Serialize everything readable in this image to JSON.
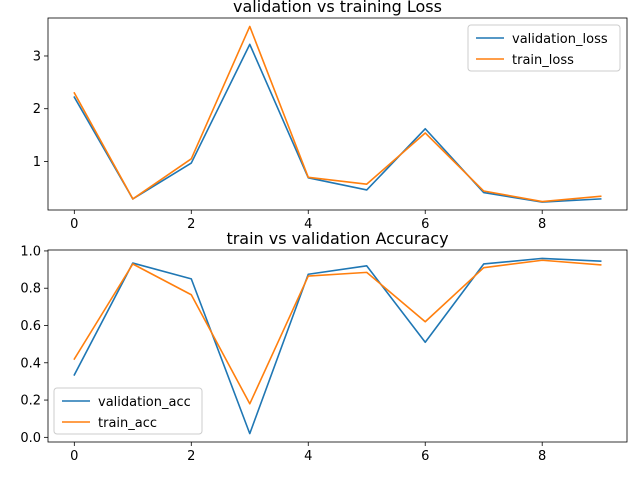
{
  "chart_data": [
    {
      "type": "line",
      "title": "validation vs training Loss",
      "xlabel": "",
      "ylabel": "",
      "x": [
        0,
        1,
        2,
        3,
        4,
        5,
        6,
        7,
        8,
        9
      ],
      "xlim": [
        -0.45,
        9.45
      ],
      "ylim": [
        0.08,
        3.72
      ],
      "xticks": [
        0,
        2,
        4,
        6,
        8
      ],
      "yticks": [
        1,
        2,
        3
      ],
      "grid": false,
      "legend_position": "upper right",
      "series": [
        {
          "name": "validation_loss",
          "color": "#1f77b4",
          "values": [
            2.22,
            0.29,
            0.97,
            3.22,
            0.69,
            0.46,
            1.62,
            0.41,
            0.23,
            0.29
          ]
        },
        {
          "name": "train_loss",
          "color": "#ff7f0e",
          "values": [
            2.3,
            0.29,
            1.05,
            3.56,
            0.7,
            0.57,
            1.54,
            0.44,
            0.24,
            0.34
          ]
        }
      ]
    },
    {
      "type": "line",
      "title": "train vs validation Accuracy",
      "xlabel": "",
      "ylabel": "",
      "x": [
        0,
        1,
        2,
        3,
        4,
        5,
        6,
        7,
        8,
        9
      ],
      "xlim": [
        -0.45,
        9.45
      ],
      "ylim": [
        -0.025,
        1.005
      ],
      "xticks": [
        0,
        2,
        4,
        6,
        8
      ],
      "yticks": [
        "0.0",
        "0.2",
        "0.4",
        "0.6",
        "0.8",
        "1.0"
      ],
      "grid": false,
      "legend_position": "lower left",
      "series": [
        {
          "name": "validation_acc",
          "color": "#1f77b4",
          "values": [
            0.335,
            0.935,
            0.85,
            0.02,
            0.875,
            0.92,
            0.51,
            0.93,
            0.96,
            0.945
          ]
        },
        {
          "name": "train_acc",
          "color": "#ff7f0e",
          "values": [
            0.42,
            0.93,
            0.765,
            0.18,
            0.865,
            0.885,
            0.62,
            0.91,
            0.95,
            0.925
          ]
        }
      ]
    }
  ]
}
